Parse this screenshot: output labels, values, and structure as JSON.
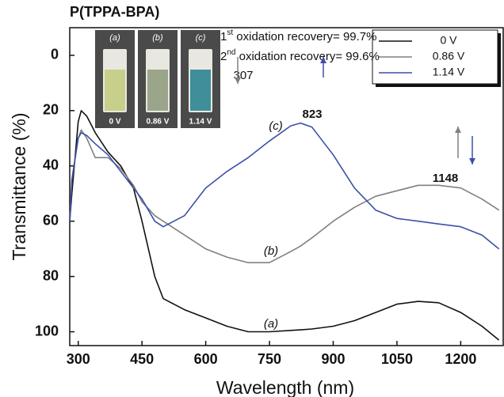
{
  "chart_data": {
    "type": "line",
    "title": "P(TPPA-BPA)",
    "x_label": "Wavelength (nm)",
    "y_label": "Transmittance (%)",
    "xlim": [
      280,
      1300
    ],
    "xticks": [
      300,
      450,
      600,
      750,
      900,
      1050,
      1200
    ],
    "ylim": [
      -10,
      105
    ],
    "yticks": [
      0,
      20,
      40,
      60,
      80,
      100
    ],
    "y_inverted": true,
    "x": [
      280,
      285,
      300,
      307,
      320,
      340,
      370,
      400,
      430,
      450,
      480,
      500,
      550,
      600,
      650,
      700,
      750,
      800,
      823,
      850,
      900,
      950,
      1000,
      1050,
      1100,
      1148,
      1200,
      1250,
      1290
    ],
    "series": [
      {
        "name": "0 V",
        "color": "#111111",
        "values": [
          60,
          50,
          24,
          20,
          22,
          28,
          35,
          40,
          48,
          60,
          80,
          88,
          92,
          95,
          98,
          100,
          100,
          99.5,
          99.3,
          99,
          98,
          96,
          93,
          90,
          89,
          89.5,
          93,
          98,
          103
        ]
      },
      {
        "name": "0.86 V",
        "color": "#808080",
        "values": [
          60,
          45,
          30,
          27,
          30,
          37,
          37,
          41,
          47,
          53,
          58,
          60,
          65,
          70,
          73,
          75,
          75,
          71,
          69,
          66,
          60,
          55,
          51,
          49,
          47,
          47,
          48,
          52,
          56
        ]
      },
      {
        "name": "1.14 V",
        "color": "#3d4fa8",
        "values": [
          60,
          45,
          30,
          28,
          29,
          32,
          36,
          42,
          48,
          52,
          60,
          62,
          58,
          48,
          42,
          37,
          31,
          25.5,
          24.5,
          26,
          36,
          48,
          56,
          59,
          60,
          61,
          62,
          65,
          70
        ]
      }
    ],
    "legend_position": "upper right",
    "annotations": {
      "peak_307": "307",
      "peak_823": "823",
      "peak_1148": "1148",
      "curve_a": "(a)",
      "curve_b": "(b)",
      "curve_c": "(c)",
      "recovery_1": [
        "1",
        "st",
        " oxidation recovery= 99.7%"
      ],
      "recovery_2": [
        "2",
        "nd",
        " oxidation recovery= 99.6%"
      ]
    },
    "photos": [
      {
        "label": "(a)",
        "voltage": "0 V",
        "color": "#c8cf8a"
      },
      {
        "label": "(b)",
        "voltage": "0.86 V",
        "color": "#9aa58a"
      },
      {
        "label": "(c)",
        "voltage": "1.14 V",
        "color": "#3f8e9a"
      }
    ]
  }
}
